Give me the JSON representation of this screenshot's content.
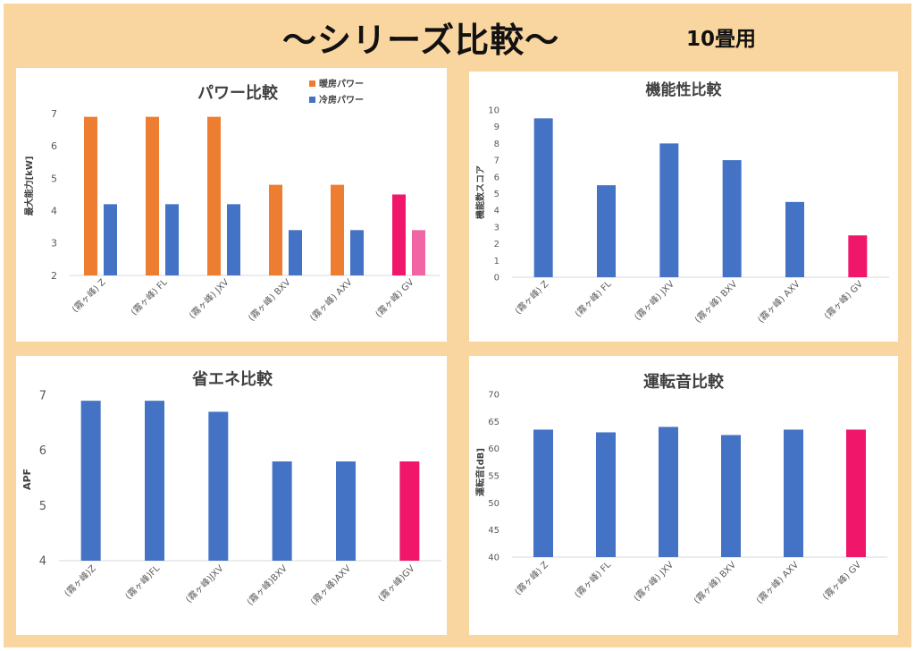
{
  "page": {
    "title": "〜シリーズ比較〜",
    "subtitle": "10畳用",
    "colors": {
      "background": "#f9d6a0",
      "bar_blue": "#4472c4",
      "bar_orange": "#ed7d31",
      "highlight": "#f0166a",
      "highlight_light": "#f265a4"
    }
  },
  "chart_data": [
    {
      "id": "power",
      "type": "bar",
      "title": "パワー比較",
      "xlabel": "",
      "ylabel": "最大能力[kW]",
      "categories": [
        "(霧ヶ峰) Z",
        "(霧ヶ峰) FL",
        "(霧ヶ峰) JXV",
        "(霧ヶ峰) BXV",
        "(霧ヶ峰) AXV",
        "(霧ヶ峰) GV"
      ],
      "series": [
        {
          "name": "暖房パワー",
          "color": "#ed7d31",
          "values": [
            6.9,
            6.9,
            6.9,
            4.8,
            4.8,
            4.5
          ]
        },
        {
          "name": "冷房パワー",
          "color": "#4472c4",
          "values": [
            4.2,
            4.2,
            4.2,
            3.4,
            3.4,
            3.4
          ]
        }
      ],
      "highlight_index": 5,
      "highlight_colors": [
        "#f0166a",
        "#f265a4"
      ],
      "ylim": [
        2,
        7
      ],
      "yticks": [
        "2",
        "3",
        "4",
        "5",
        "6",
        "7"
      ],
      "legend": "top-right",
      "grid": false
    },
    {
      "id": "features",
      "type": "bar",
      "title": "機能性比較",
      "xlabel": "",
      "ylabel": "機能数スコア",
      "categories": [
        "(霧ヶ峰) Z",
        "(霧ヶ峰) FL",
        "(霧ヶ峰) JXV",
        "(霧ヶ峰) BXV",
        "(霧ヶ峰) AXV",
        "(霧ヶ峰) GV"
      ],
      "series": [
        {
          "color": "#4472c4",
          "values": [
            9.5,
            5.5,
            8,
            7,
            4.5,
            2.5
          ]
        }
      ],
      "highlight_index": 5,
      "highlight_colors": [
        "#f0166a"
      ],
      "ylim": [
        0,
        10
      ],
      "yticks": [
        "0",
        "1",
        "2",
        "3",
        "4",
        "5",
        "6",
        "7",
        "8",
        "9",
        "10"
      ],
      "legend": "none",
      "grid": false
    },
    {
      "id": "efficiency",
      "type": "bar",
      "title": "省エネ比較",
      "xlabel": "",
      "ylabel": "APF",
      "categories": [
        "(霧ヶ峰)Z",
        "(霧ヶ峰)FL",
        "(霧ヶ峰)JXV",
        "(霧ヶ峰)BXV",
        "(霧ヶ峰)AXV",
        "(霧ヶ峰)GV"
      ],
      "series": [
        {
          "color": "#4472c4",
          "values": [
            6.9,
            6.9,
            6.7,
            5.8,
            5.8,
            5.8
          ]
        }
      ],
      "highlight_index": 5,
      "highlight_colors": [
        "#f0166a"
      ],
      "ylim": [
        4,
        7
      ],
      "yticks": [
        "4",
        "5",
        "6",
        "7"
      ],
      "legend": "none",
      "grid": false
    },
    {
      "id": "noise",
      "type": "bar",
      "title": "運転音比較",
      "xlabel": "",
      "ylabel": "運転音[dB]",
      "categories": [
        "(霧ヶ峰) Z",
        "(霧ヶ峰) FL",
        "(霧ヶ峰) JXV",
        "(霧ヶ峰) BXV",
        "(霧ヶ峰) AXV",
        "(霧ヶ峰) GV"
      ],
      "series": [
        {
          "color": "#4472c4",
          "values": [
            63.5,
            63,
            64,
            62.5,
            63.5,
            63.5
          ]
        }
      ],
      "highlight_index": 5,
      "highlight_colors": [
        "#f0166a"
      ],
      "ylim": [
        40,
        70
      ],
      "yticks": [
        "40",
        "45",
        "50",
        "55",
        "60",
        "65",
        "70"
      ],
      "legend": "none",
      "grid": false
    }
  ]
}
